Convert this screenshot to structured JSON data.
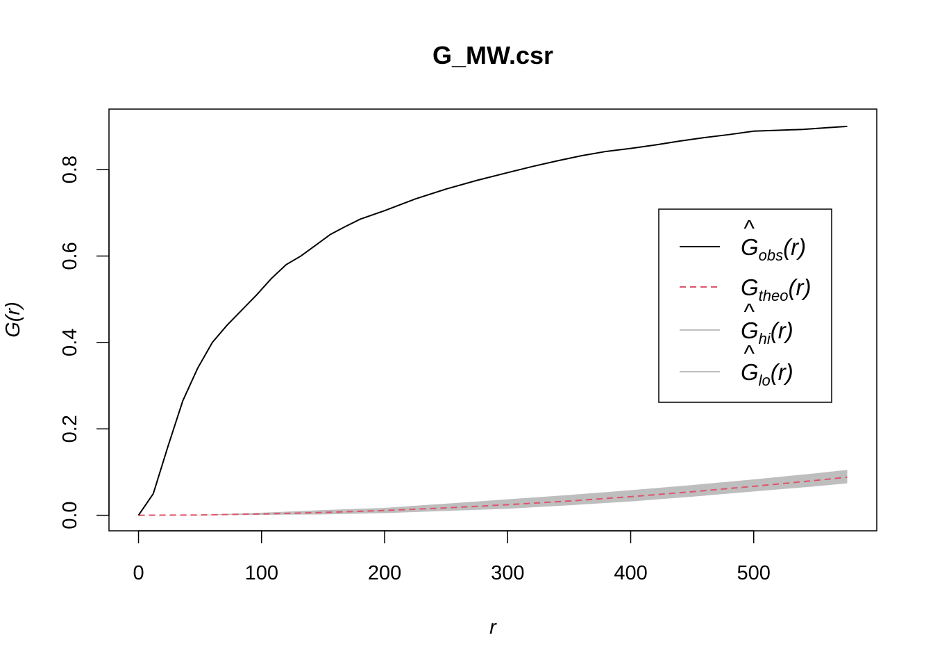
{
  "chart_data": {
    "type": "line",
    "title": "G_MW.csr",
    "xlabel": "r",
    "ylabel": "G(r)",
    "xlim": [
      -24,
      600
    ],
    "ylim": [
      -0.036,
      0.94
    ],
    "xticks": [
      0,
      100,
      200,
      300,
      400,
      500
    ],
    "xtick_labels": [
      "0",
      "100",
      "200",
      "300",
      "400",
      "500"
    ],
    "yticks": [
      0.0,
      0.2,
      0.4,
      0.6,
      0.8
    ],
    "ytick_labels": [
      "0.0",
      "0.2",
      "0.4",
      "0.6",
      "0.8"
    ],
    "legend_position": "right",
    "envelope_color": "#bebebe",
    "series": [
      {
        "name": "Gobs(r)",
        "legend_main": "G",
        "legend_sub": "obs",
        "legend_hat": true,
        "color": "#000000",
        "dash": "solid",
        "x": [
          0,
          12,
          24,
          36,
          48,
          60,
          72,
          84,
          96,
          108,
          120,
          132,
          144,
          156,
          168,
          180,
          200,
          225,
          250,
          275,
          300,
          320,
          340,
          360,
          380,
          400,
          420,
          440,
          460,
          480,
          500,
          520,
          540,
          560,
          576
        ],
        "y": [
          0.0,
          0.05,
          0.16,
          0.265,
          0.34,
          0.4,
          0.44,
          0.475,
          0.51,
          0.548,
          0.58,
          0.6,
          0.625,
          0.65,
          0.668,
          0.685,
          0.705,
          0.732,
          0.755,
          0.775,
          0.793,
          0.807,
          0.82,
          0.832,
          0.842,
          0.849,
          0.857,
          0.866,
          0.874,
          0.881,
          0.889,
          0.891,
          0.893,
          0.897,
          0.9
        ]
      },
      {
        "name": "Gtheo(r)",
        "legend_main": "G",
        "legend_sub": "theo",
        "legend_hat": false,
        "color": "#df536b",
        "dash": "dashed",
        "x": [
          0,
          50,
          100,
          150,
          200,
          250,
          300,
          350,
          400,
          450,
          500,
          550,
          576
        ],
        "y": [
          0.0,
          0.0007,
          0.003,
          0.0065,
          0.011,
          0.017,
          0.0245,
          0.033,
          0.043,
          0.0545,
          0.067,
          0.0805,
          0.088
        ]
      },
      {
        "name": "Ghi(r)",
        "legend_main": "G",
        "legend_sub": "hi",
        "legend_hat": true,
        "color": "#bebebe",
        "dash": "solid",
        "x": [
          0,
          50,
          100,
          150,
          200,
          250,
          300,
          350,
          400,
          450,
          500,
          550,
          576
        ],
        "y": [
          0.0,
          0.001,
          0.006,
          0.012,
          0.017,
          0.027,
          0.037,
          0.047,
          0.058,
          0.07,
          0.083,
          0.097,
          0.105
        ]
      },
      {
        "name": "Glo(r)",
        "legend_main": "G",
        "legend_sub": "lo",
        "legend_hat": true,
        "color": "#bebebe",
        "dash": "solid",
        "x": [
          0,
          50,
          100,
          150,
          200,
          250,
          300,
          350,
          400,
          450,
          500,
          550,
          576
        ],
        "y": [
          0.0,
          0.0002,
          0.001,
          0.002,
          0.005,
          0.01,
          0.015,
          0.023,
          0.032,
          0.043,
          0.055,
          0.067,
          0.074
        ]
      }
    ]
  }
}
